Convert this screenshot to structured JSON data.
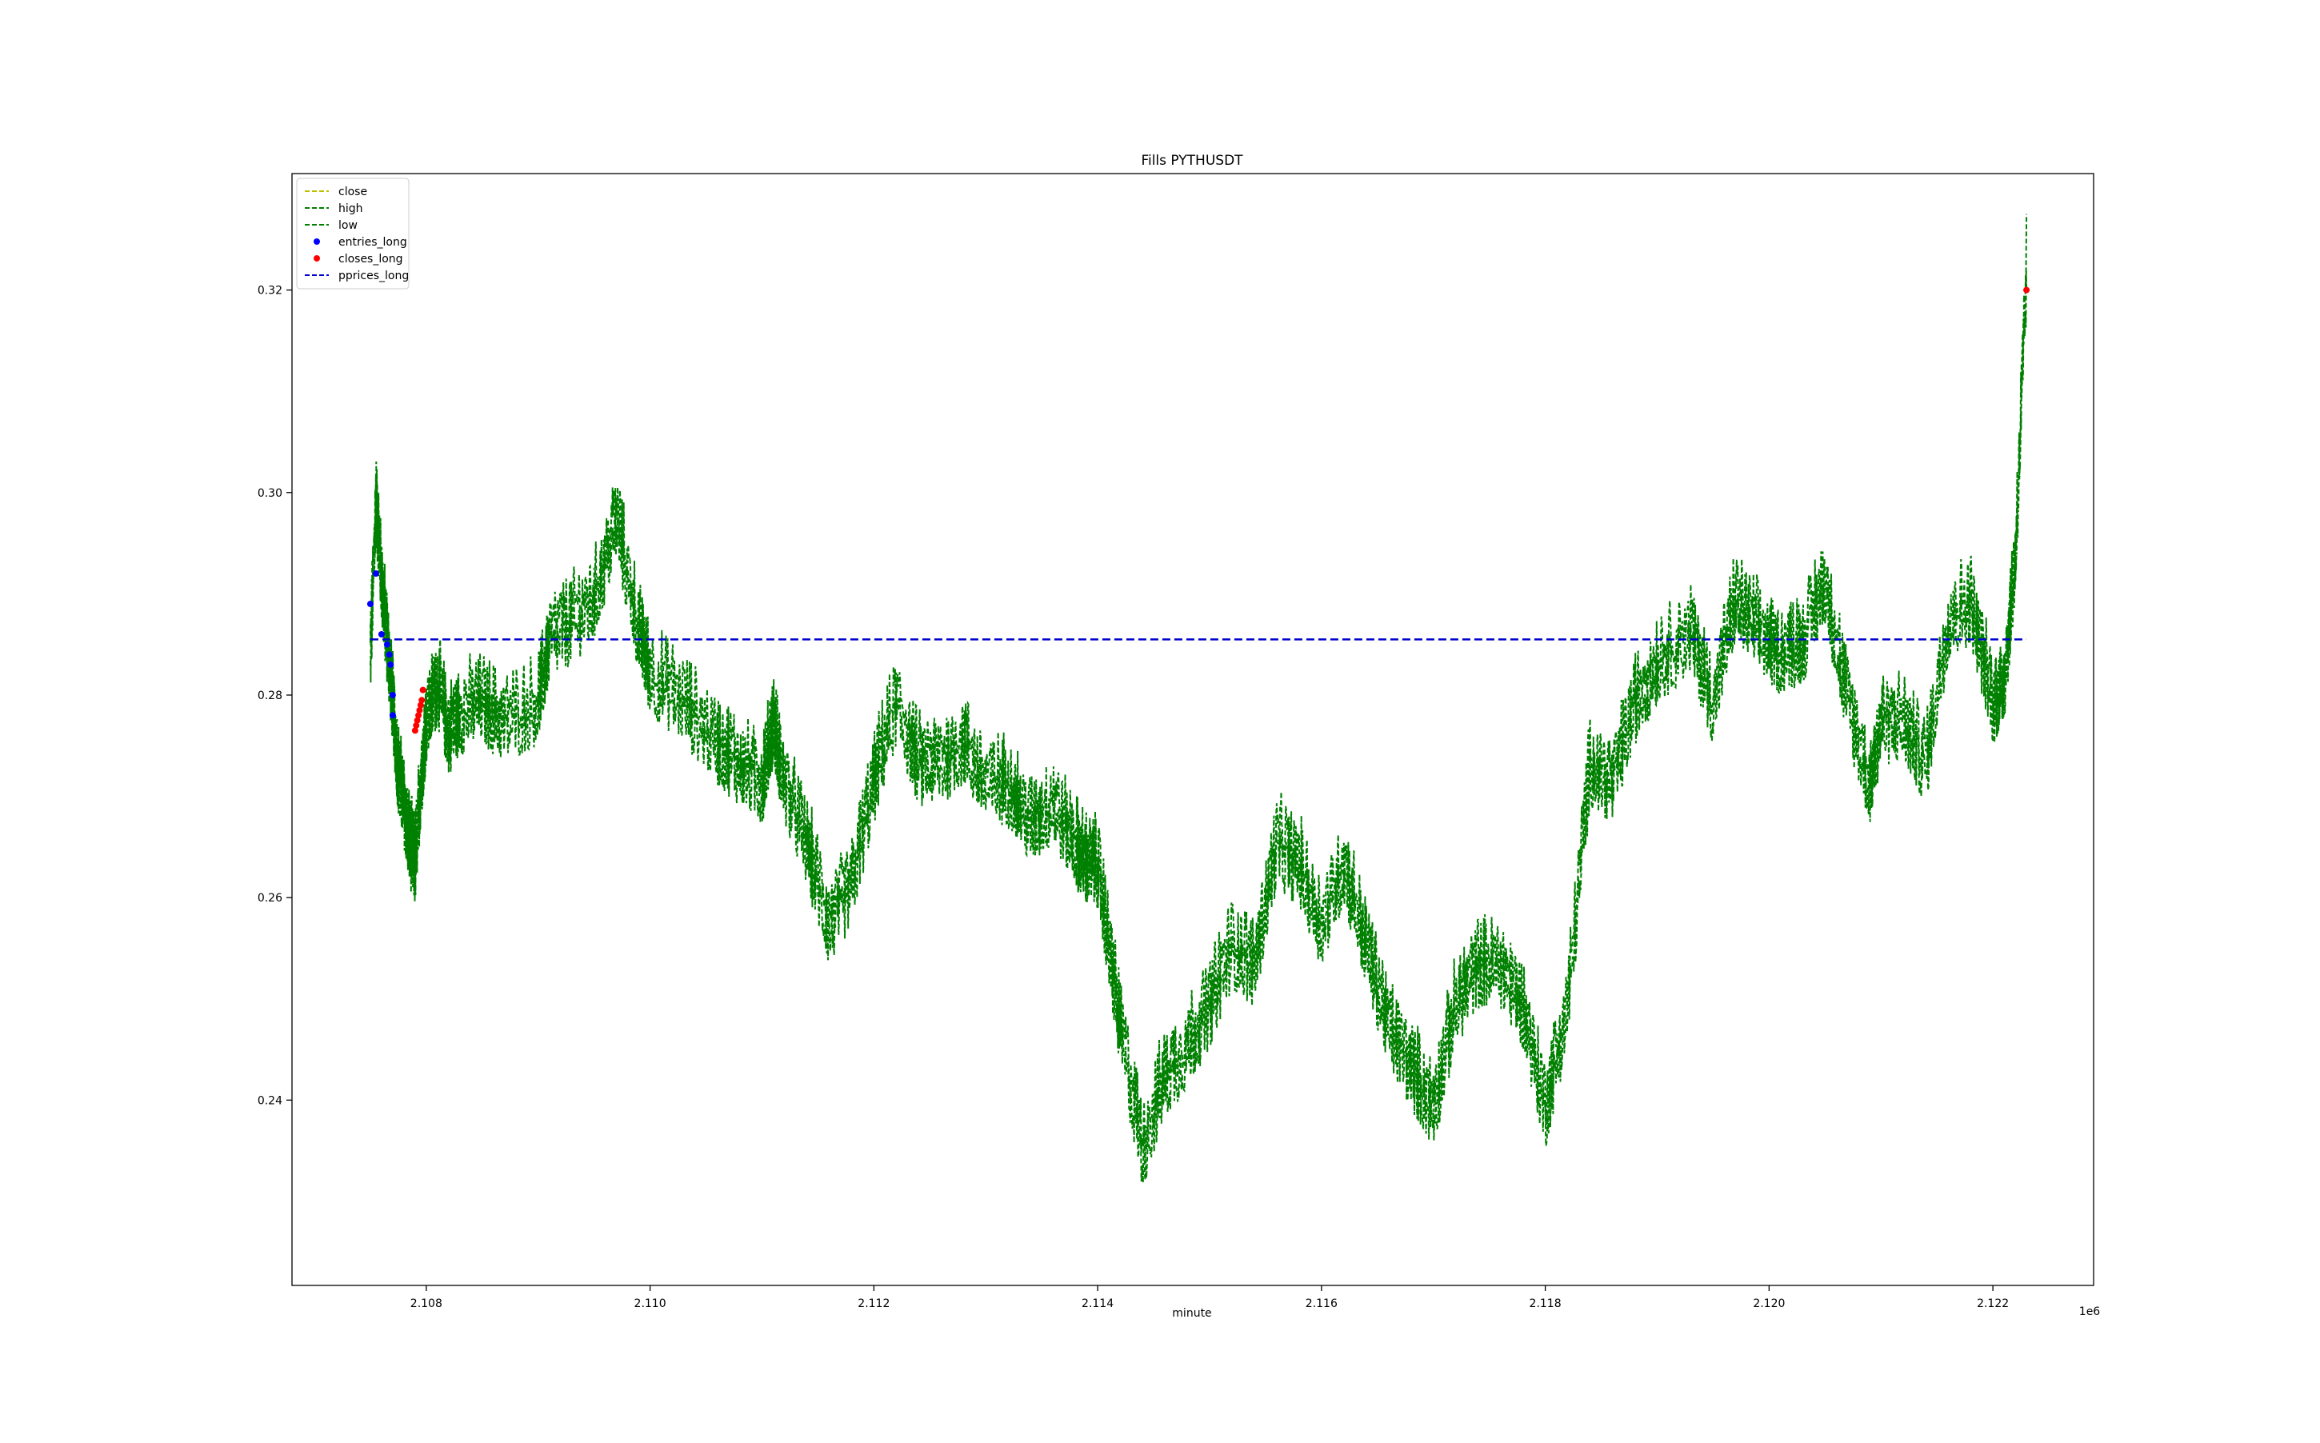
{
  "chart_data": {
    "type": "line",
    "title": "Fills PYTHUSDT",
    "xlabel": "minute",
    "ylabel": "",
    "x_offset_label": "1e6",
    "xlim": [
      2.1068,
      2.1229
    ],
    "ylim": [
      0.2217,
      0.3315
    ],
    "x_ticks": [
      2.108,
      2.11,
      2.112,
      2.114,
      2.116,
      2.118,
      2.12,
      2.122
    ],
    "x_tick_labels": [
      "2.108",
      "2.110",
      "2.112",
      "2.114",
      "2.116",
      "2.118",
      "2.120",
      "2.122"
    ],
    "y_ticks": [
      0.24,
      0.26,
      0.28,
      0.3,
      0.32
    ],
    "y_tick_labels": [
      "0.24",
      "0.26",
      "0.28",
      "0.30",
      "0.32"
    ],
    "grid": false,
    "legend": {
      "placement": "top-left"
    },
    "series": [
      {
        "name": "close",
        "style": "dashed",
        "color": "#bfbf00"
      },
      {
        "name": "high",
        "style": "dashed",
        "color": "#008000"
      },
      {
        "name": "low",
        "style": "dashed",
        "color": "#008000",
        "x": [
          2.1075,
          2.10755,
          2.1076,
          2.10765,
          2.1077,
          2.10775,
          2.1078,
          2.10785,
          2.1079,
          2.10795,
          2.108,
          2.1081,
          2.1082,
          2.1083,
          2.1085,
          2.1087,
          2.109,
          2.1091,
          2.1093,
          2.1095,
          2.1097,
          2.1099,
          2.11,
          2.1103,
          2.1106,
          2.1108,
          2.111,
          2.1111,
          2.1112,
          2.1114,
          2.1116,
          2.1118,
          2.112,
          2.1122,
          2.1124,
          2.1126,
          2.1128,
          2.113,
          2.1132,
          2.1134,
          2.1136,
          2.1138,
          2.1139,
          2.114,
          2.1141,
          2.1142,
          2.1144,
          2.1146,
          2.1148,
          2.115,
          2.1152,
          2.1154,
          2.1156,
          2.1158,
          2.116,
          2.1162,
          2.1164,
          2.1166,
          2.1168,
          2.117,
          2.1172,
          2.1174,
          2.1176,
          2.1178,
          2.118,
          2.1182,
          2.1184,
          2.1186,
          2.1188,
          2.119,
          2.1193,
          2.1195,
          2.1197,
          2.1199,
          2.1201,
          2.1203,
          2.1205,
          2.1207,
          2.1209,
          2.121,
          2.1212,
          2.1214,
          2.1216,
          2.1218,
          2.122,
          2.1221,
          2.1222,
          2.1223
        ],
        "y": [
          0.282,
          0.298,
          0.29,
          0.284,
          0.278,
          0.271,
          0.268,
          0.264,
          0.262,
          0.27,
          0.276,
          0.28,
          0.275,
          0.277,
          0.278,
          0.276,
          0.278,
          0.284,
          0.286,
          0.288,
          0.296,
          0.285,
          0.281,
          0.278,
          0.274,
          0.272,
          0.27,
          0.276,
          0.27,
          0.264,
          0.256,
          0.26,
          0.27,
          0.278,
          0.272,
          0.272,
          0.274,
          0.27,
          0.27,
          0.266,
          0.268,
          0.264,
          0.262,
          0.262,
          0.254,
          0.246,
          0.234,
          0.241,
          0.244,
          0.248,
          0.254,
          0.252,
          0.264,
          0.262,
          0.256,
          0.262,
          0.254,
          0.246,
          0.242,
          0.238,
          0.248,
          0.252,
          0.252,
          0.248,
          0.238,
          0.248,
          0.272,
          0.27,
          0.278,
          0.282,
          0.285,
          0.278,
          0.288,
          0.285,
          0.283,
          0.284,
          0.29,
          0.278,
          0.27,
          0.276,
          0.276,
          0.272,
          0.286,
          0.288,
          0.278,
          0.28,
          0.292,
          0.32
        ]
      }
    ],
    "fills": [
      {
        "name": "entries_long",
        "marker": "dot",
        "color": "#0000ff",
        "x": [
          2.1075,
          2.10755,
          2.1076,
          2.10765,
          2.10767,
          2.10768,
          2.1077,
          2.1077
        ],
        "y": [
          0.289,
          0.292,
          0.286,
          0.285,
          0.284,
          0.283,
          0.28,
          0.278
        ]
      },
      {
        "name": "closes_long",
        "marker": "dot",
        "color": "#ff0000",
        "x": [
          2.1079,
          2.10791,
          2.10792,
          2.10793,
          2.10794,
          2.10795,
          2.10796,
          2.10797,
          2.1223
        ],
        "y": [
          0.2765,
          0.277,
          0.2775,
          0.278,
          0.2785,
          0.279,
          0.2795,
          0.2805,
          0.32
        ]
      }
    ],
    "pprices_long": {
      "name": "pprices_long",
      "style": "dashed",
      "color": "#0000cc",
      "value": 0.2855
    }
  }
}
